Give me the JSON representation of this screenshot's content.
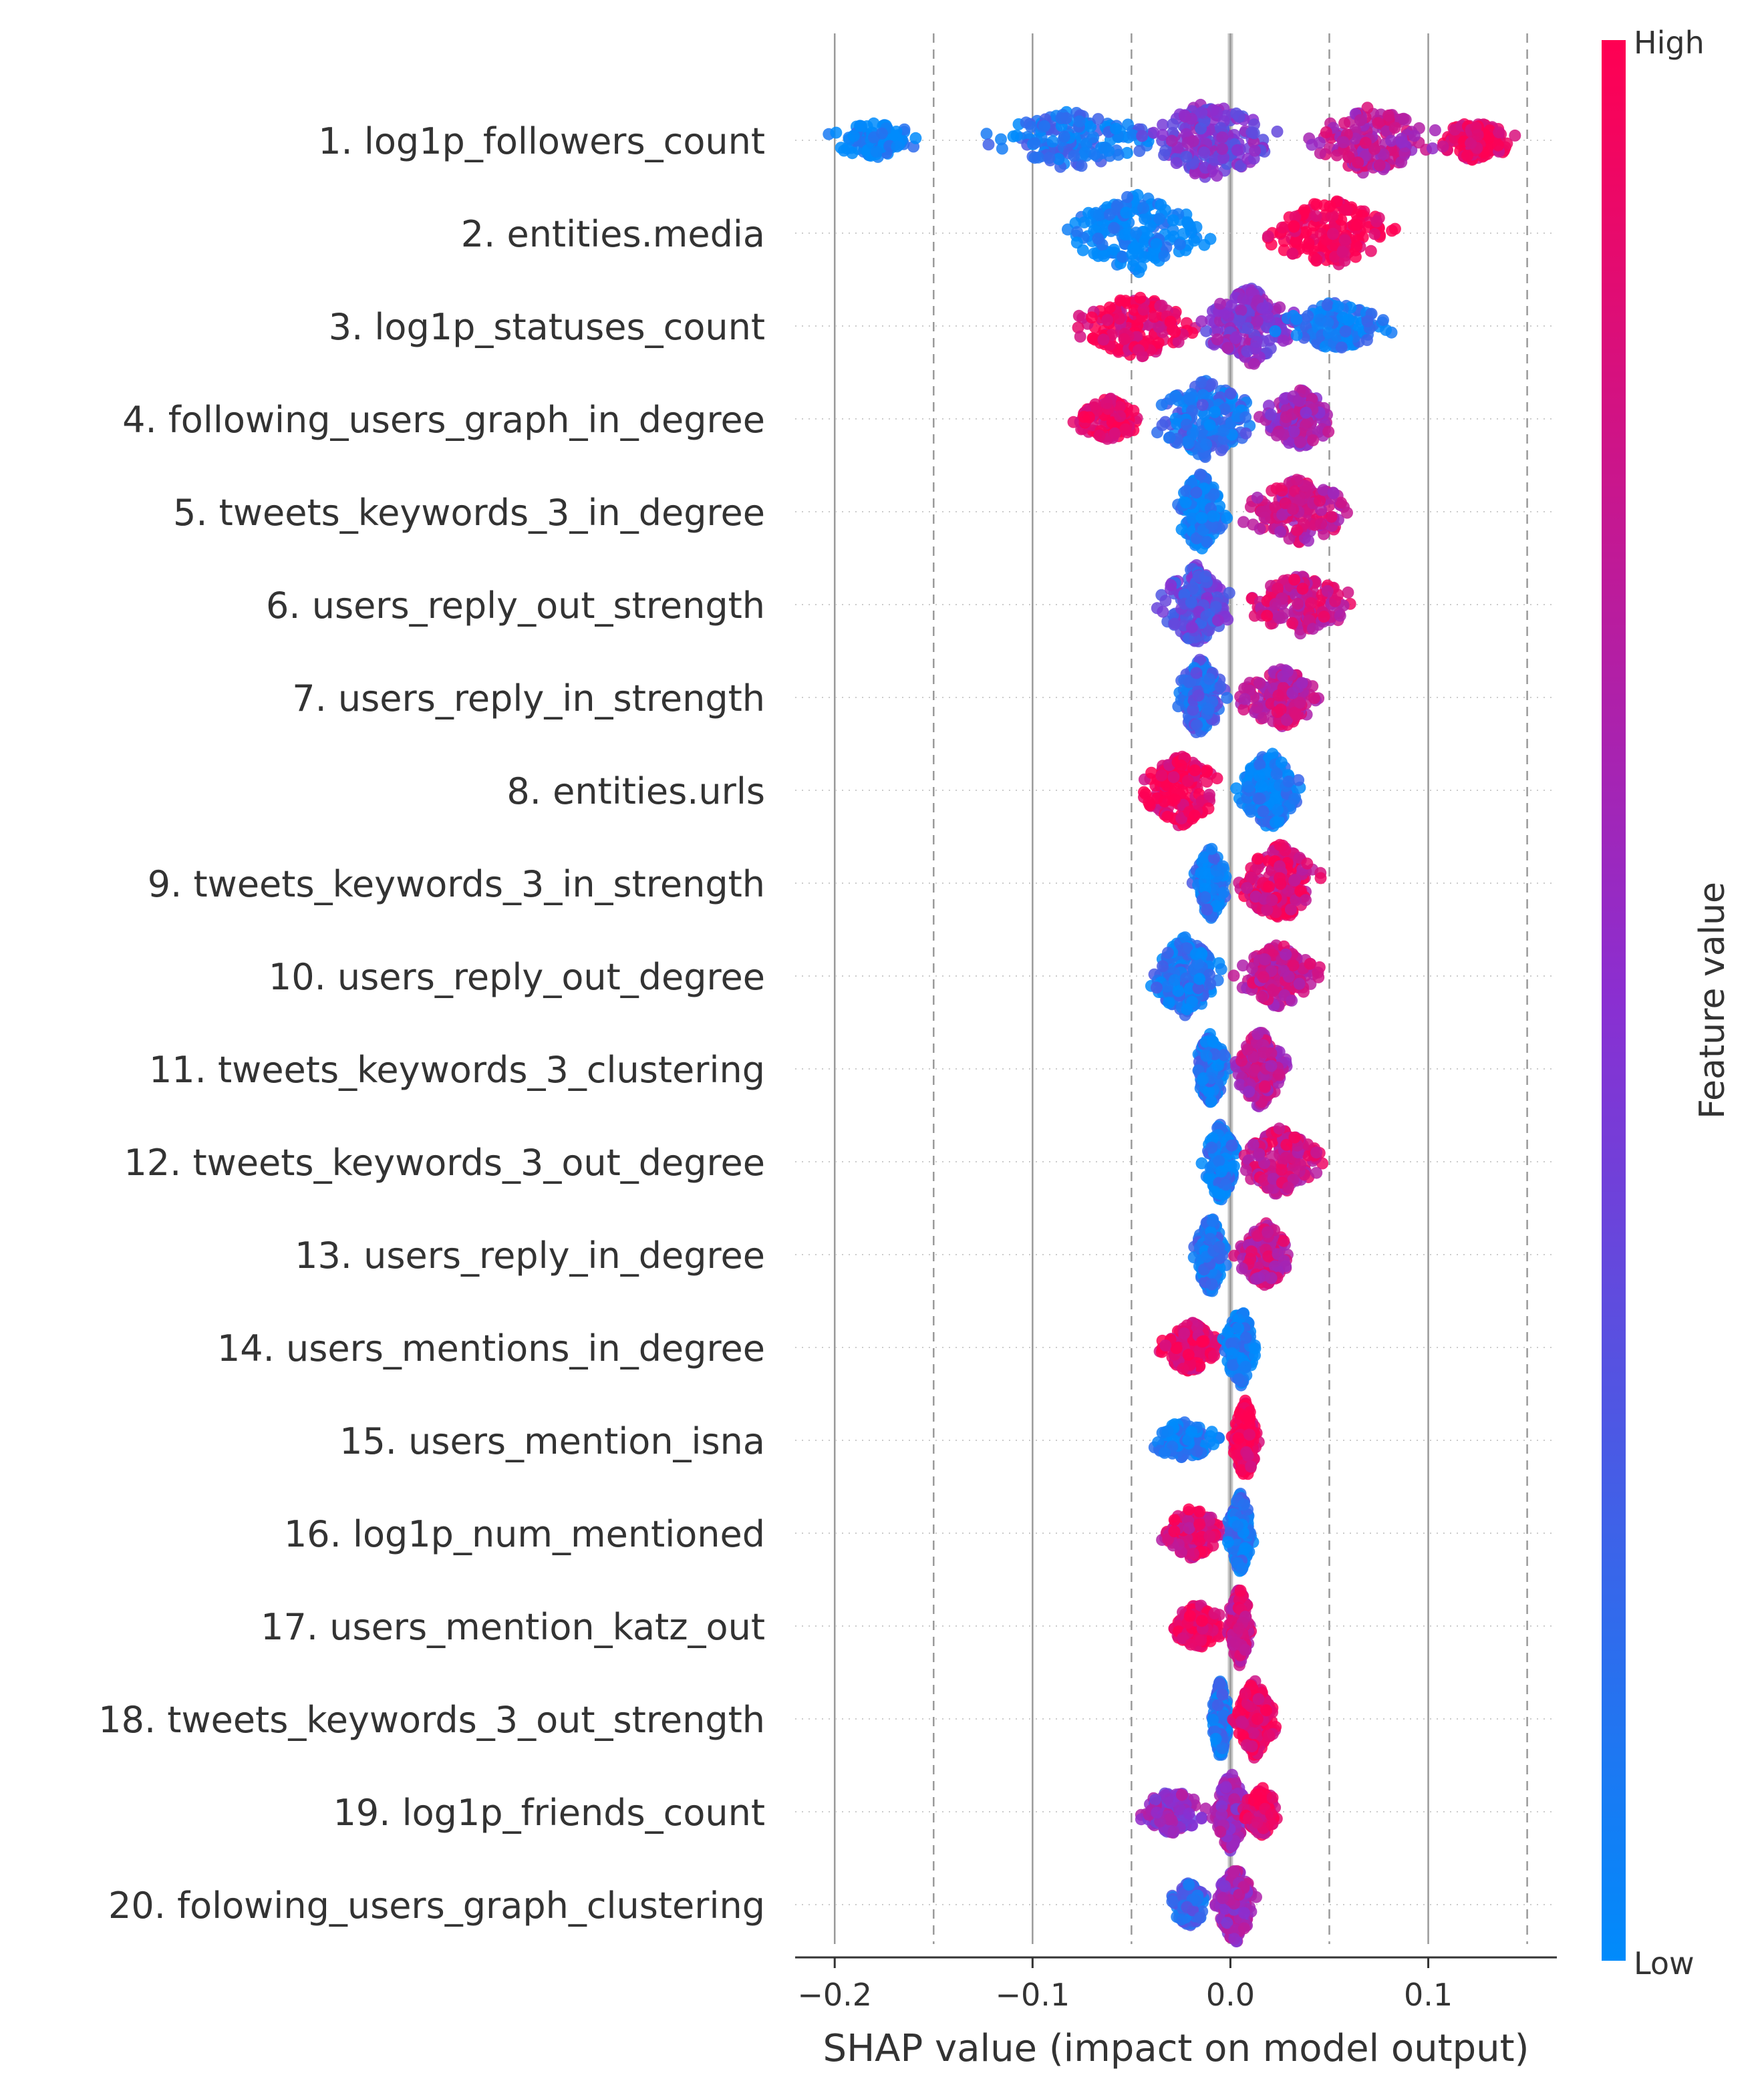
{
  "chart_data": {
    "type": "scatter",
    "subtype": "shap-beeswarm",
    "xlabel": "SHAP value (impact on model output)",
    "xlim": [
      -0.22,
      0.165
    ],
    "xticks": [
      -0.2,
      -0.1,
      0.0,
      0.1
    ],
    "xtick_labels": [
      "−0.2",
      "−0.1",
      "0.0",
      "0.1"
    ],
    "solid_grid_x": [
      -0.2,
      -0.1,
      0.0,
      0.1
    ],
    "dashed_grid_x": [
      -0.15,
      -0.05,
      0.05,
      0.15
    ],
    "colorbar": {
      "label": "Feature value",
      "high_label": "High",
      "low_label": "Low",
      "high_color": "#ff0052",
      "mid_color": "#8a2fd1",
      "low_color": "#008bfb"
    },
    "features": [
      {
        "label": "1. log1p_followers_count",
        "groups": [
          {
            "x": [
              -0.21,
              -0.15
            ],
            "v": 0.0,
            "w": 0.35
          },
          {
            "x": [
              -0.13,
              -0.03
            ],
            "v": 0.12,
            "w": 0.7
          },
          {
            "x": [
              -0.05,
              0.03
            ],
            "v": 0.45,
            "w": 1.0
          },
          {
            "x": [
              0.03,
              0.11
            ],
            "v": 0.7,
            "w": 0.85
          },
          {
            "x": [
              0.1,
              0.148
            ],
            "v": 0.92,
            "w": 0.45
          }
        ]
      },
      {
        "label": "2. entities.media",
        "groups": [
          {
            "x": [
              -0.09,
              -0.005
            ],
            "v": 0.0,
            "w": 1.0
          },
          {
            "x": [
              0.01,
              0.09
            ],
            "v": 1.0,
            "w": 0.85
          }
        ]
      },
      {
        "label": "3. log1p_statuses_count",
        "groups": [
          {
            "x": [
              -0.085,
              -0.01
            ],
            "v": 0.92,
            "w": 0.8
          },
          {
            "x": [
              -0.02,
              0.04
            ],
            "v": 0.5,
            "w": 1.0
          },
          {
            "x": [
              0.02,
              0.085
            ],
            "v": 0.08,
            "w": 0.55
          }
        ]
      },
      {
        "label": "4. following_users_graph_in_degree",
        "groups": [
          {
            "x": [
              -0.083,
              -0.04
            ],
            "v": 0.95,
            "w": 0.45
          },
          {
            "x": [
              -0.045,
              0.02
            ],
            "v": 0.15,
            "w": 1.0
          },
          {
            "x": [
              0.01,
              0.06
            ],
            "v": 0.6,
            "w": 0.7
          }
        ]
      },
      {
        "label": "5. tweets_keywords_3_in_degree",
        "groups": [
          {
            "x": [
              -0.03,
              0.0
            ],
            "v": 0.05,
            "w": 1.0
          },
          {
            "x": [
              0.0,
              0.07
            ],
            "v": 0.75,
            "w": 0.8
          }
        ]
      },
      {
        "label": "6. users_reply_out_strength",
        "groups": [
          {
            "x": [
              -0.04,
              0.005
            ],
            "v": 0.35,
            "w": 1.0
          },
          {
            "x": [
              0.0,
              0.07
            ],
            "v": 0.8,
            "w": 0.7
          }
        ]
      },
      {
        "label": "7. users_reply_in_strength",
        "groups": [
          {
            "x": [
              -0.03,
              0.0
            ],
            "v": 0.2,
            "w": 1.0
          },
          {
            "x": [
              0.0,
              0.05
            ],
            "v": 0.75,
            "w": 0.75
          }
        ]
      },
      {
        "label": "8. entities.urls",
        "groups": [
          {
            "x": [
              -0.05,
              0.0
            ],
            "v": 0.95,
            "w": 0.9
          },
          {
            "x": [
              0.0,
              0.04
            ],
            "v": 0.05,
            "w": 1.0
          }
        ]
      },
      {
        "label": "9. tweets_keywords_3_in_strength",
        "groups": [
          {
            "x": [
              -0.02,
              0.0
            ],
            "v": 0.1,
            "w": 0.9
          },
          {
            "x": [
              0.0,
              0.05
            ],
            "v": 0.85,
            "w": 1.0
          }
        ]
      },
      {
        "label": "10. users_reply_out_degree",
        "groups": [
          {
            "x": [
              -0.045,
              0.0
            ],
            "v": 0.1,
            "w": 1.0
          },
          {
            "x": [
              0.0,
              0.05
            ],
            "v": 0.75,
            "w": 0.8
          }
        ]
      },
      {
        "label": "11. tweets_keywords_3_clustering",
        "groups": [
          {
            "x": [
              -0.02,
              0.0
            ],
            "v": 0.1,
            "w": 0.9
          },
          {
            "x": [
              0.0,
              0.03
            ],
            "v": 0.7,
            "w": 1.0
          }
        ]
      },
      {
        "label": "12. tweets_keywords_3_out_degree",
        "groups": [
          {
            "x": [
              -0.015,
              0.005
            ],
            "v": 0.08,
            "w": 1.0
          },
          {
            "x": [
              0.0,
              0.05
            ],
            "v": 0.8,
            "w": 0.85
          }
        ]
      },
      {
        "label": "13. users_reply_in_degree",
        "groups": [
          {
            "x": [
              -0.02,
              0.0
            ],
            "v": 0.1,
            "w": 1.0
          },
          {
            "x": [
              0.0,
              0.035
            ],
            "v": 0.75,
            "w": 0.8
          }
        ]
      },
      {
        "label": "14. users_mentions_in_degree",
        "groups": [
          {
            "x": [
              -0.04,
              0.0
            ],
            "v": 0.9,
            "w": 0.6
          },
          {
            "x": [
              -0.005,
              0.015
            ],
            "v": 0.05,
            "w": 1.0
          }
        ]
      },
      {
        "label": "15. users_mention_isna",
        "groups": [
          {
            "x": [
              -0.045,
              -0.003
            ],
            "v": 0.05,
            "w": 0.4
          },
          {
            "x": [
              0.0,
              0.015
            ],
            "v": 0.97,
            "w": 1.0
          }
        ]
      },
      {
        "label": "16. log1p_num_mentioned",
        "groups": [
          {
            "x": [
              -0.038,
              0.0
            ],
            "v": 0.85,
            "w": 0.6
          },
          {
            "x": [
              -0.003,
              0.013
            ],
            "v": 0.1,
            "w": 1.0
          }
        ]
      },
      {
        "label": "17. users_mention_katz_out",
        "groups": [
          {
            "x": [
              -0.033,
              0.0
            ],
            "v": 0.95,
            "w": 0.5
          },
          {
            "x": [
              -0.003,
              0.012
            ],
            "v": 0.8,
            "w": 1.0
          }
        ]
      },
      {
        "label": "18. tweets_keywords_3_out_strength",
        "groups": [
          {
            "x": [
              -0.01,
              0.0
            ],
            "v": 0.1,
            "w": 1.0
          },
          {
            "x": [
              0.0,
              0.025
            ],
            "v": 0.95,
            "w": 1.0
          }
        ]
      },
      {
        "label": "19. log1p_friends_count",
        "groups": [
          {
            "x": [
              -0.048,
              -0.01
            ],
            "v": 0.55,
            "w": 0.5
          },
          {
            "x": [
              -0.01,
              0.01
            ],
            "v": 0.6,
            "w": 1.0
          },
          {
            "x": [
              0.005,
              0.027
            ],
            "v": 0.9,
            "w": 0.55
          }
        ]
      },
      {
        "label": "20. folowing_users_graph_clustering",
        "groups": [
          {
            "x": [
              -0.032,
              -0.01
            ],
            "v": 0.2,
            "w": 0.5
          },
          {
            "x": [
              -0.01,
              0.015
            ],
            "v": 0.6,
            "w": 1.0
          }
        ]
      }
    ]
  }
}
